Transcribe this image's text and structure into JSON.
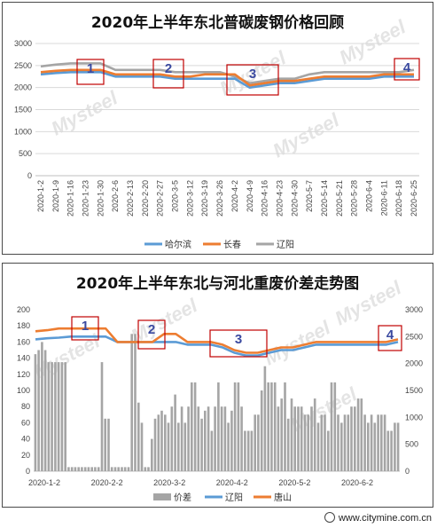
{
  "footer": {
    "text": "www.citymine.com.cn",
    "logo_icon": "wechat-icon"
  },
  "watermark": "Mysteel",
  "colors": {
    "harbin": "#5b9bd5",
    "changchun": "#ed7d31",
    "liaoyang": "#a5a5a5",
    "spread": "#a5a5a5",
    "marker": "#c00000",
    "marker_label": "#3b4aa0"
  },
  "chart_data": [
    {
      "type": "line",
      "title": "2020年上半年东北普碳废钢价格回顾",
      "ylim": [
        0,
        3000
      ],
      "yticks": [
        "0",
        "500",
        "1000",
        "1500",
        "2000",
        "2500",
        "3000"
      ],
      "x_tick_labels": [
        "2020-1-2",
        "2020-1-9",
        "2020-1-16",
        "2020-1-23",
        "2020-1-30",
        "2020-2-6",
        "2020-2-13",
        "2020-2-20",
        "2020-2-27",
        "2020-3-5",
        "2020-3-12",
        "2020-3-19",
        "2020-3-26",
        "2020-4-2",
        "2020-4-9",
        "2020-4-16",
        "2020-4-23",
        "2020-4-30",
        "2020-5-7",
        "2020-5-14",
        "2020-5-21",
        "2020-5-28",
        "2020-6-4",
        "2020-6-11",
        "2020-6-18",
        "2020-6-25"
      ],
      "grid": true,
      "legend_position": "bottom",
      "series": [
        {
          "name": "哈尔滨",
          "values": [
            2300,
            2330,
            2350,
            2350,
            2350,
            2250,
            2250,
            2250,
            2250,
            2200,
            2200,
            2200,
            2200,
            2200,
            2000,
            2050,
            2100,
            2100,
            2150,
            2200,
            2200,
            2200,
            2200,
            2250,
            2250,
            2250
          ]
        },
        {
          "name": "长春",
          "values": [
            2350,
            2380,
            2400,
            2400,
            2400,
            2300,
            2300,
            2300,
            2300,
            2250,
            2250,
            2300,
            2300,
            2300,
            2050,
            2100,
            2150,
            2150,
            2200,
            2250,
            2250,
            2250,
            2250,
            2300,
            2300,
            2300
          ]
        },
        {
          "name": "辽阳",
          "values": [
            2480,
            2520,
            2550,
            2550,
            2550,
            2400,
            2400,
            2400,
            2400,
            2350,
            2350,
            2350,
            2350,
            2250,
            2100,
            2150,
            2200,
            2200,
            2300,
            2350,
            2350,
            2350,
            2350,
            2350,
            2350,
            2400
          ]
        }
      ],
      "markers": [
        "1",
        "2",
        "3",
        "4"
      ]
    },
    {
      "type": "bar",
      "title": "2020年上半年东北与河北重废价差走势图",
      "ylim": [
        0,
        200
      ],
      "yticks": [
        "0",
        "20",
        "40",
        "60",
        "80",
        "100",
        "120",
        "140",
        "160",
        "180",
        "200"
      ],
      "y2lim": [
        0,
        3000
      ],
      "y2ticks": [
        "0",
        "500",
        "1000",
        "1500",
        "2000",
        "2500",
        "3000"
      ],
      "x_tick_labels": [
        "2020-1-2",
        "2020-2-2",
        "2020-3-2",
        "2020-4-2",
        "2020-5-2",
        "2020-6-2"
      ],
      "legend_position": "bottom",
      "series": [
        {
          "name": "价差",
          "type": "bar",
          "axis": "left",
          "values": [
            145,
            150,
            160,
            150,
            135,
            135,
            135,
            135,
            135,
            135,
            5,
            5,
            5,
            5,
            5,
            5,
            5,
            5,
            5,
            5,
            135,
            65,
            65,
            5,
            5,
            5,
            5,
            5,
            5,
            170,
            170,
            85,
            60,
            5,
            5,
            40,
            65,
            70,
            75,
            70,
            60,
            80,
            95,
            60,
            80,
            60,
            80,
            110,
            110,
            80,
            65,
            75,
            80,
            50,
            80,
            110,
            80,
            80,
            60,
            75,
            110,
            110,
            80,
            50,
            50,
            50,
            70,
            70,
            100,
            130,
            110,
            110,
            110,
            80,
            90,
            110,
            65,
            90,
            80,
            80,
            80,
            70,
            70,
            80,
            90,
            60,
            70,
            70,
            50,
            110,
            110,
            70,
            60,
            70,
            70,
            80,
            80,
            90,
            90,
            70,
            60,
            70,
            60,
            70,
            70,
            70,
            50,
            50,
            60,
            60
          ]
        },
        {
          "name": "辽阳",
          "type": "line",
          "axis": "right",
          "values": [
            2450,
            2470,
            2480,
            2500,
            2500,
            2500,
            2500,
            2400,
            2400,
            2400,
            2400,
            2400,
            2400,
            2350,
            2350,
            2350,
            2300,
            2200,
            2150,
            2150,
            2200,
            2250,
            2250,
            2300,
            2350,
            2350,
            2350,
            2350,
            2350,
            2350,
            2350,
            2400
          ]
        },
        {
          "name": "唐山",
          "type": "line",
          "axis": "right",
          "values": [
            2600,
            2620,
            2650,
            2650,
            2650,
            2650,
            2650,
            2400,
            2400,
            2400,
            2400,
            2550,
            2550,
            2400,
            2400,
            2400,
            2350,
            2250,
            2200,
            2200,
            2250,
            2300,
            2300,
            2350,
            2400,
            2400,
            2400,
            2400,
            2400,
            2400,
            2400,
            2450
          ]
        }
      ],
      "markers": [
        "1",
        "2",
        "3",
        "4"
      ]
    }
  ]
}
